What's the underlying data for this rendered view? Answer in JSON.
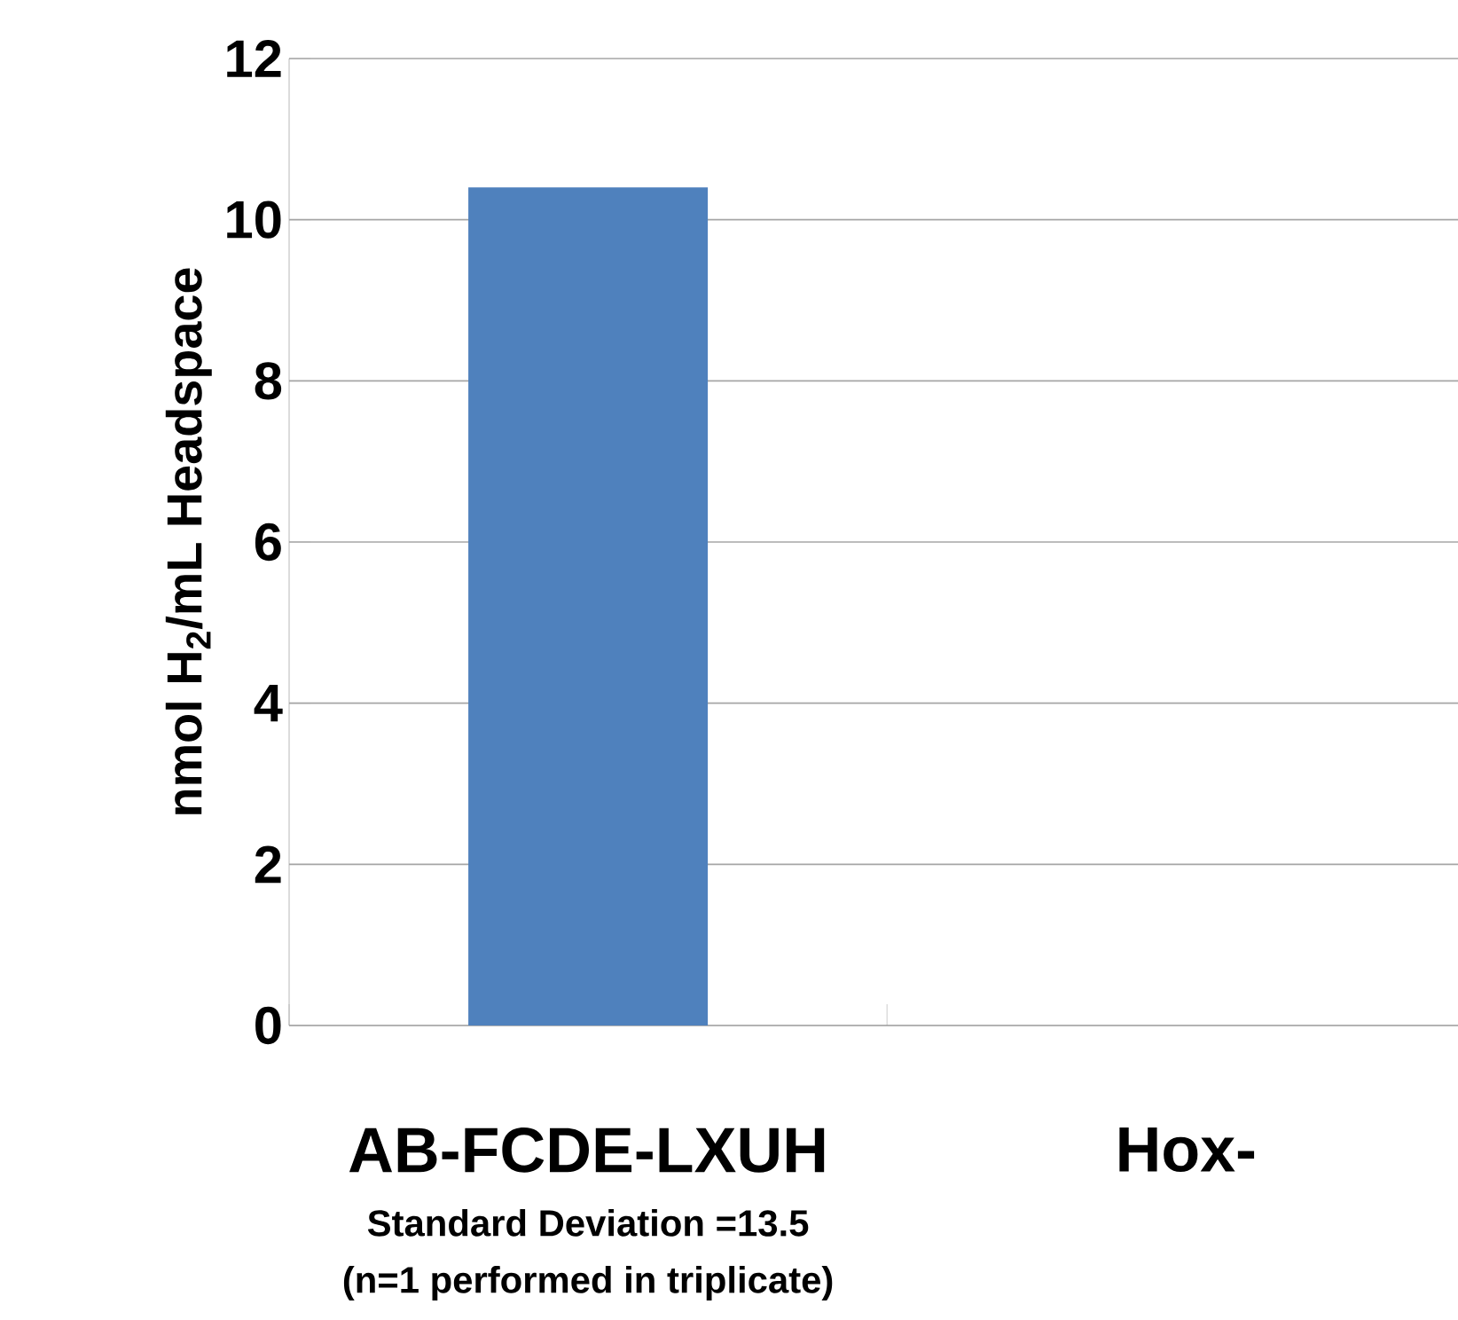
{
  "chart_data": {
    "type": "bar",
    "ylabel": "nmol H$_{2}$/mL Headspace",
    "categories": [
      "AB-FCDE-LXUH",
      "Hox-"
    ],
    "values": [
      10.4,
      0
    ],
    "color": "#4f81bd",
    "ylim": [
      0,
      12
    ],
    "yticks": [
      0,
      2,
      4,
      6,
      8,
      10,
      12
    ],
    "grid": "y",
    "annotations": [
      "Standard Deviation =13.5",
      "(n=1 performed in triplicate)"
    ]
  }
}
